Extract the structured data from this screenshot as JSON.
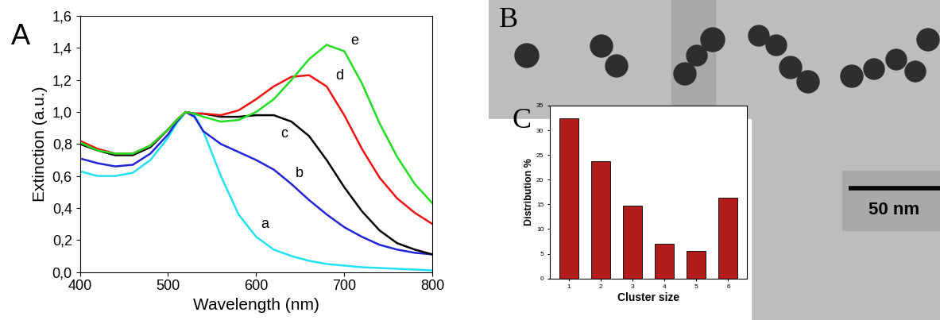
{
  "chart_data": [
    {
      "type": "line",
      "title": "A",
      "x_label": "Wavelength (nm)",
      "y_label": "Extinction (a.u.)",
      "x": [
        400,
        420,
        440,
        460,
        480,
        500,
        510,
        520,
        530,
        540,
        560,
        580,
        600,
        620,
        640,
        660,
        680,
        700,
        720,
        740,
        760,
        780,
        800
      ],
      "series": [
        {
          "name": "a",
          "color": "#22e0f0",
          "values": [
            0.63,
            0.6,
            0.6,
            0.62,
            0.7,
            0.84,
            0.93,
            1.0,
            0.98,
            0.88,
            0.6,
            0.36,
            0.22,
            0.14,
            0.1,
            0.07,
            0.05,
            0.04,
            0.03,
            0.025,
            0.02,
            0.015,
            0.01
          ]
        },
        {
          "name": "b",
          "color": "#2424d4",
          "values": [
            0.71,
            0.68,
            0.66,
            0.67,
            0.74,
            0.86,
            0.94,
            1.0,
            0.97,
            0.88,
            0.8,
            0.75,
            0.7,
            0.64,
            0.55,
            0.45,
            0.36,
            0.28,
            0.22,
            0.17,
            0.14,
            0.12,
            0.11
          ]
        },
        {
          "name": "c",
          "color": "#000000",
          "values": [
            0.8,
            0.76,
            0.73,
            0.73,
            0.78,
            0.89,
            0.95,
            1.0,
            0.99,
            0.99,
            0.97,
            0.97,
            0.98,
            0.98,
            0.94,
            0.85,
            0.7,
            0.53,
            0.38,
            0.26,
            0.18,
            0.14,
            0.11
          ]
        },
        {
          "name": "d",
          "color": "#ee1111",
          "values": [
            0.82,
            0.77,
            0.74,
            0.74,
            0.79,
            0.89,
            0.95,
            1.0,
            0.99,
            0.99,
            0.98,
            1.01,
            1.08,
            1.16,
            1.22,
            1.23,
            1.16,
            0.98,
            0.77,
            0.59,
            0.46,
            0.37,
            0.3
          ]
        },
        {
          "name": "e",
          "color": "#22dd22",
          "values": [
            0.81,
            0.76,
            0.74,
            0.74,
            0.79,
            0.89,
            0.95,
            1.0,
            0.99,
            0.97,
            0.94,
            0.95,
            1.0,
            1.08,
            1.2,
            1.33,
            1.42,
            1.38,
            1.18,
            0.93,
            0.72,
            0.55,
            0.43
          ]
        }
      ],
      "xlim": [
        400,
        800
      ],
      "ylim": [
        0,
        1.6
      ],
      "xticks": [
        400,
        500,
        600,
        700,
        800
      ],
      "yticks": [
        {
          "value": 0,
          "label": "0,0"
        },
        {
          "value": 0.2,
          "label": "0,2"
        },
        {
          "value": 0.4,
          "label": "0,4"
        },
        {
          "value": 0.6,
          "label": "0,6"
        },
        {
          "value": 0.8,
          "label": "0,8"
        },
        {
          "value": 1.0,
          "label": "1,0"
        },
        {
          "value": 1.2,
          "label": "1,2"
        },
        {
          "value": 1.4,
          "label": "1,4"
        },
        {
          "value": 1.6,
          "label": "1,6"
        }
      ]
    },
    {
      "type": "bar",
      "title": "C",
      "x_label": "Cluster size",
      "y_label": "Distribution %",
      "categories": [
        "1",
        "2",
        "3",
        "4",
        "5",
        "6"
      ],
      "values": [
        32.5,
        23.7,
        14.7,
        7.0,
        5.6,
        16.4
      ],
      "color": "#b01c1c",
      "ylim": [
        0,
        35
      ],
      "yticks": [
        0,
        5,
        10,
        15,
        20,
        25,
        30,
        35
      ]
    }
  ],
  "image": {
    "label": "B",
    "scale_bar": "50 nm"
  }
}
